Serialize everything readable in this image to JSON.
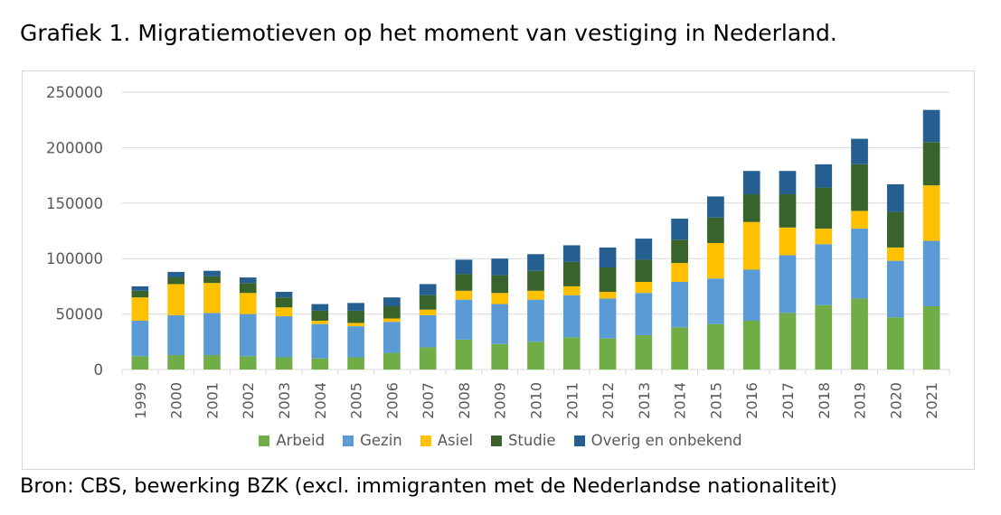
{
  "title": "Grafiek 1. Migratiemotieven op het moment van vestiging in Nederland.",
  "source": "Bron: CBS, bewerking BZK (excl. immigranten met de Nederlandse nationaliteit)",
  "chart_data": {
    "type": "bar",
    "stacked": true,
    "categories": [
      "1999",
      "2000",
      "2001",
      "2002",
      "2003",
      "2004",
      "2005",
      "2006",
      "2007",
      "2008",
      "2009",
      "2010",
      "2011",
      "2012",
      "2013",
      "2014",
      "2015",
      "2016",
      "2017",
      "2018",
      "2019",
      "2020",
      "2021"
    ],
    "series": [
      {
        "name": "Arbeid",
        "color": "#70ad47",
        "values": [
          12000,
          13000,
          13000,
          12000,
          11000,
          10000,
          11000,
          15000,
          20000,
          27000,
          23000,
          25000,
          29000,
          28000,
          31000,
          38000,
          41000,
          44000,
          51000,
          58000,
          64000,
          47000,
          57000
        ]
      },
      {
        "name": "Gezin",
        "color": "#5b9bd5",
        "values": [
          32000,
          36000,
          38000,
          38000,
          37000,
          31000,
          28000,
          28000,
          29000,
          36000,
          36000,
          38000,
          38000,
          36000,
          38000,
          41000,
          41000,
          46000,
          52000,
          55000,
          63000,
          51000,
          59000
        ]
      },
      {
        "name": "Asiel",
        "color": "#ffc000",
        "values": [
          21000,
          28000,
          27000,
          19000,
          8000,
          3000,
          3000,
          3000,
          5000,
          8000,
          10000,
          8000,
          8000,
          6000,
          10000,
          17000,
          32000,
          43000,
          25000,
          14000,
          16000,
          12000,
          50000
        ]
      },
      {
        "name": "Studie",
        "color": "#38632a",
        "values": [
          6000,
          6000,
          6000,
          9000,
          9000,
          9000,
          11000,
          11000,
          13000,
          15000,
          16000,
          18000,
          22000,
          22000,
          20000,
          21000,
          23000,
          25000,
          30000,
          37000,
          42000,
          32000,
          39000
        ]
      },
      {
        "name": "Overig en onbekend",
        "color": "#255e91",
        "values": [
          4000,
          5000,
          5000,
          5000,
          5000,
          6000,
          7000,
          8000,
          10000,
          13000,
          15000,
          15000,
          15000,
          18000,
          19000,
          19000,
          19000,
          21000,
          21000,
          21000,
          23000,
          25000,
          29000
        ]
      }
    ],
    "y_ticks": [
      "0",
      "50000",
      "100000",
      "150000",
      "200000",
      "250000"
    ],
    "ylim": [
      0,
      250000
    ],
    "grid": true,
    "legend_position": "bottom"
  }
}
